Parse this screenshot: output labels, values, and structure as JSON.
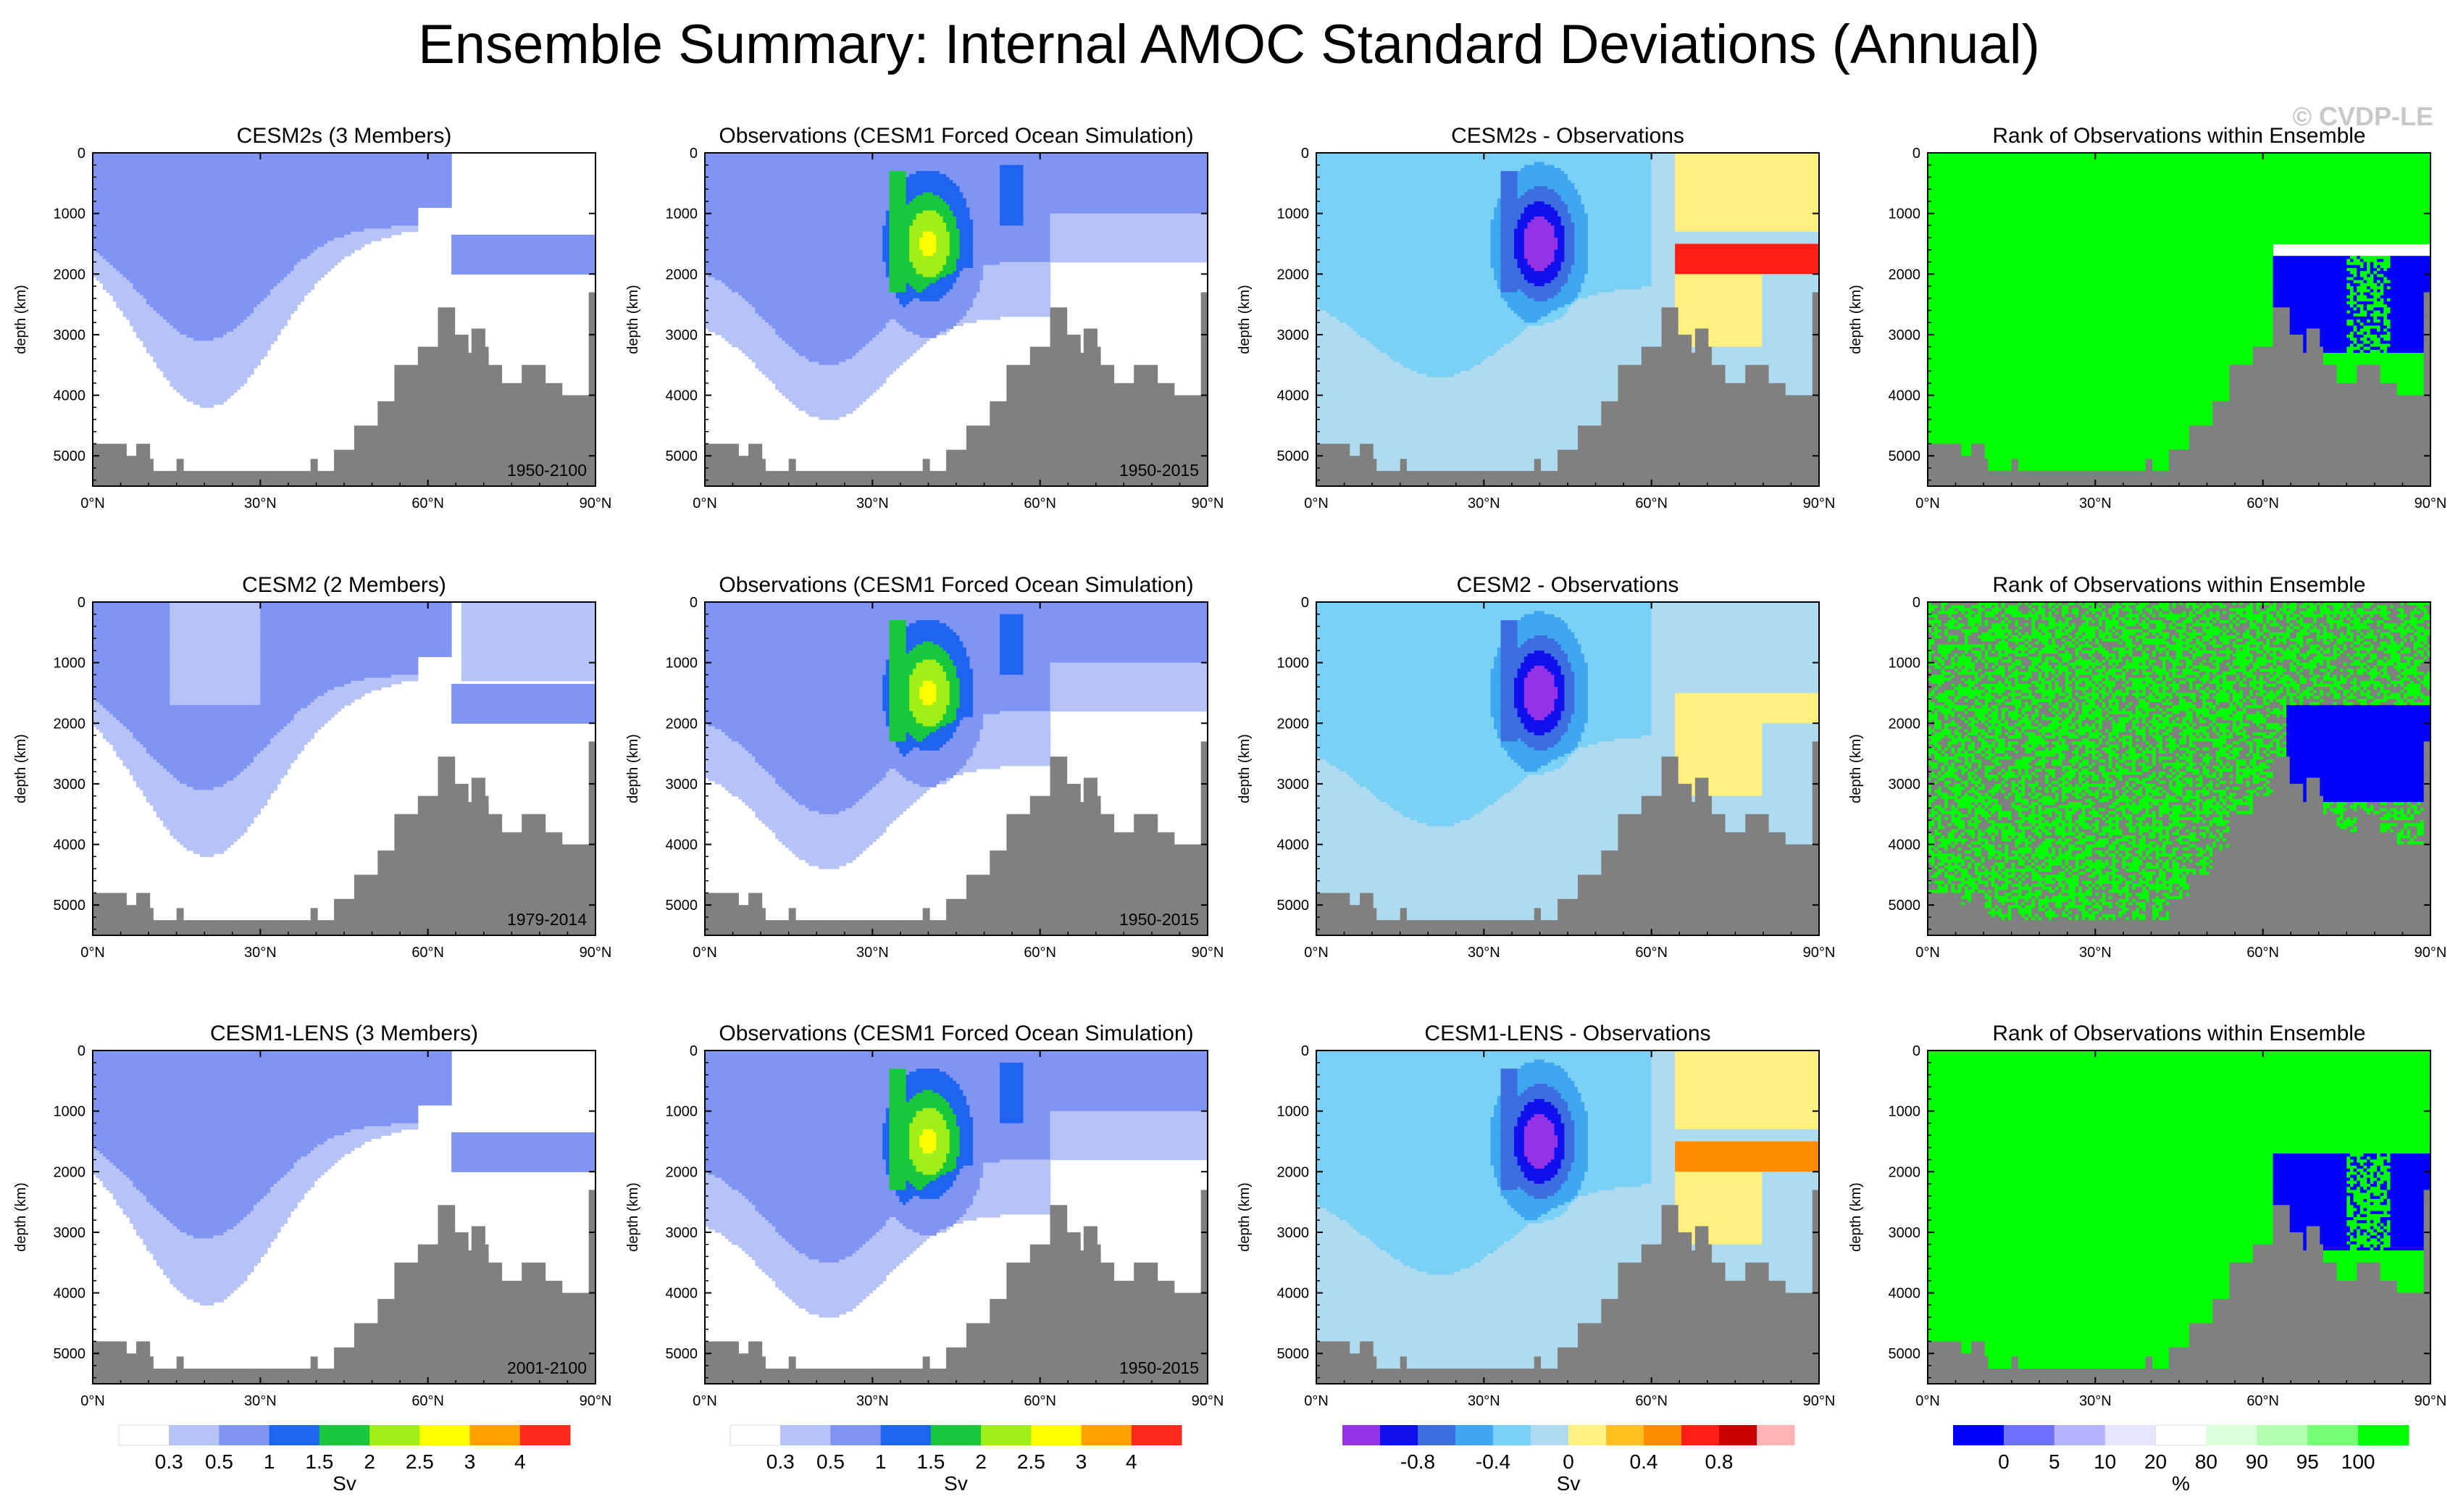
{
  "title": "Ensemble Summary: Internal AMOC Standard Deviations (Annual)",
  "watermark": "© CVDP-LE",
  "colors": {
    "land": "#808080",
    "std": [
      "#ffffff",
      "#b5c3f7",
      "#7f94f3",
      "#1e64f0",
      "#18c83c",
      "#a0f018",
      "#ffff00",
      "#ffa000",
      "#ff2a1e"
    ],
    "diff": [
      "#9632e6",
      "#1010ee",
      "#3c6ee0",
      "#3ea7f0",
      "#7ad0f5",
      "#aedbf0",
      "#fff080",
      "#ffc020",
      "#ff8c00",
      "#ff1e14",
      "#c80000",
      "#ffb4b4"
    ],
    "rank": [
      "#0000ff",
      "#6e6eff",
      "#b4b4ff",
      "#e6e6ff",
      "#ffffff",
      "#dcffdc",
      "#b4ffb4",
      "#78ff78",
      "#00ff00"
    ]
  },
  "chart_data": [
    {
      "type": "heatmap",
      "row": 0,
      "col": 0,
      "field": "std",
      "title": "CESM2s (3 Members)",
      "period": "1950-2100",
      "xlabel": "",
      "ylabel": "depth (km)",
      "x_ticks": [
        "0°N",
        "30°N",
        "60°N",
        "90°N"
      ],
      "y_ticks": [
        "0",
        "1000",
        "2000",
        "3000",
        "4000",
        "5000"
      ],
      "xlim": [
        0,
        90
      ],
      "ylim": [
        5500,
        0
      ]
    },
    {
      "type": "heatmap",
      "row": 0,
      "col": 1,
      "field": "obs",
      "title": "Observations (CESM1 Forced Ocean Simulation)",
      "period": "1950-2015",
      "xlabel": "",
      "ylabel": "depth (km)",
      "x_ticks": [
        "0°N",
        "30°N",
        "60°N",
        "90°N"
      ],
      "y_ticks": [
        "0",
        "1000",
        "2000",
        "3000",
        "4000",
        "5000"
      ],
      "xlim": [
        0,
        90
      ],
      "ylim": [
        5500,
        0
      ]
    },
    {
      "type": "heatmap",
      "row": 0,
      "col": 2,
      "field": "diff",
      "title": "CESM2s - Observations",
      "xlabel": "",
      "ylabel": "depth (km)",
      "x_ticks": [
        "0°N",
        "30°N",
        "60°N",
        "90°N"
      ],
      "y_ticks": [
        "0",
        "1000",
        "2000",
        "3000",
        "4000",
        "5000"
      ],
      "xlim": [
        0,
        90
      ],
      "ylim": [
        5500,
        0
      ]
    },
    {
      "type": "heatmap",
      "row": 0,
      "col": 3,
      "field": "rank",
      "title": "Rank of Observations within Ensemble",
      "xlabel": "",
      "ylabel": "depth (km)",
      "x_ticks": [
        "0°N",
        "30°N",
        "60°N",
        "90°N"
      ],
      "y_ticks": [
        "0",
        "1000",
        "2000",
        "3000",
        "4000",
        "5000"
      ],
      "xlim": [
        0,
        90
      ],
      "ylim": [
        5500,
        0
      ]
    },
    {
      "type": "heatmap",
      "row": 1,
      "col": 0,
      "field": "std",
      "title": "CESM2 (2 Members)",
      "period": "1979-2014",
      "xlabel": "",
      "ylabel": "depth (km)",
      "x_ticks": [
        "0°N",
        "30°N",
        "60°N",
        "90°N"
      ],
      "y_ticks": [
        "0",
        "1000",
        "2000",
        "3000",
        "4000",
        "5000"
      ],
      "xlim": [
        0,
        90
      ],
      "ylim": [
        5500,
        0
      ]
    },
    {
      "type": "heatmap",
      "row": 1,
      "col": 1,
      "field": "obs",
      "title": "Observations (CESM1 Forced Ocean Simulation)",
      "period": "1950-2015",
      "xlabel": "",
      "ylabel": "depth (km)",
      "x_ticks": [
        "0°N",
        "30°N",
        "60°N",
        "90°N"
      ],
      "y_ticks": [
        "0",
        "1000",
        "2000",
        "3000",
        "4000",
        "5000"
      ],
      "xlim": [
        0,
        90
      ],
      "ylim": [
        5500,
        0
      ]
    },
    {
      "type": "heatmap",
      "row": 1,
      "col": 2,
      "field": "diff",
      "title": "CESM2 - Observations",
      "xlabel": "",
      "ylabel": "depth (km)",
      "x_ticks": [
        "0°N",
        "30°N",
        "60°N",
        "90°N"
      ],
      "y_ticks": [
        "0",
        "1000",
        "2000",
        "3000",
        "4000",
        "5000"
      ],
      "xlim": [
        0,
        90
      ],
      "ylim": [
        5500,
        0
      ]
    },
    {
      "type": "heatmap",
      "row": 1,
      "col": 3,
      "field": "rank",
      "title": "Rank of Observations within Ensemble",
      "xlabel": "",
      "ylabel": "depth (km)",
      "x_ticks": [
        "0°N",
        "30°N",
        "60°N",
        "90°N"
      ],
      "y_ticks": [
        "0",
        "1000",
        "2000",
        "3000",
        "4000",
        "5000"
      ],
      "xlim": [
        0,
        90
      ],
      "ylim": [
        5500,
        0
      ]
    },
    {
      "type": "heatmap",
      "row": 2,
      "col": 0,
      "field": "std",
      "title": "CESM1-LENS (3 Members)",
      "period": "2001-2100",
      "xlabel": "",
      "ylabel": "depth (km)",
      "x_ticks": [
        "0°N",
        "30°N",
        "60°N",
        "90°N"
      ],
      "y_ticks": [
        "0",
        "1000",
        "2000",
        "3000",
        "4000",
        "5000"
      ],
      "xlim": [
        0,
        90
      ],
      "ylim": [
        5500,
        0
      ]
    },
    {
      "type": "heatmap",
      "row": 2,
      "col": 1,
      "field": "obs",
      "title": "Observations (CESM1 Forced Ocean Simulation)",
      "period": "1950-2015",
      "xlabel": "",
      "ylabel": "depth (km)",
      "x_ticks": [
        "0°N",
        "30°N",
        "60°N",
        "90°N"
      ],
      "y_ticks": [
        "0",
        "1000",
        "2000",
        "3000",
        "4000",
        "5000"
      ],
      "xlim": [
        0,
        90
      ],
      "ylim": [
        5500,
        0
      ]
    },
    {
      "type": "heatmap",
      "row": 2,
      "col": 2,
      "field": "diff",
      "title": "CESM1-LENS - Observations",
      "xlabel": "",
      "ylabel": "depth (km)",
      "x_ticks": [
        "0°N",
        "30°N",
        "60°N",
        "90°N"
      ],
      "y_ticks": [
        "0",
        "1000",
        "2000",
        "3000",
        "4000",
        "5000"
      ],
      "xlim": [
        0,
        90
      ],
      "ylim": [
        5500,
        0
      ]
    },
    {
      "type": "heatmap",
      "row": 2,
      "col": 3,
      "field": "rank",
      "title": "Rank of Observations within Ensemble",
      "xlabel": "",
      "ylabel": "depth (km)",
      "x_ticks": [
        "0°N",
        "30°N",
        "60°N",
        "90°N"
      ],
      "y_ticks": [
        "0",
        "1000",
        "2000",
        "3000",
        "4000",
        "5000"
      ],
      "xlim": [
        0,
        90
      ],
      "ylim": [
        5500,
        0
      ]
    }
  ],
  "colorbars": [
    {
      "col": 0,
      "palette": "std",
      "labels": [
        "0.3",
        "0.5",
        "1",
        "1.5",
        "2",
        "2.5",
        "3",
        "4"
      ],
      "unit": "Sv"
    },
    {
      "col": 1,
      "palette": "std",
      "labels": [
        "0.3",
        "0.5",
        "1",
        "1.5",
        "2",
        "2.5",
        "3",
        "4"
      ],
      "unit": "Sv"
    },
    {
      "col": 2,
      "palette": "diff",
      "labels": [
        "-0.8",
        "-0.4",
        "0",
        "0.4",
        "0.8"
      ],
      "unit": "Sv"
    },
    {
      "col": 3,
      "palette": "rank",
      "labels": [
        "0",
        "5",
        "10",
        "20",
        "80",
        "90",
        "95",
        "100"
      ],
      "unit": "%"
    }
  ]
}
